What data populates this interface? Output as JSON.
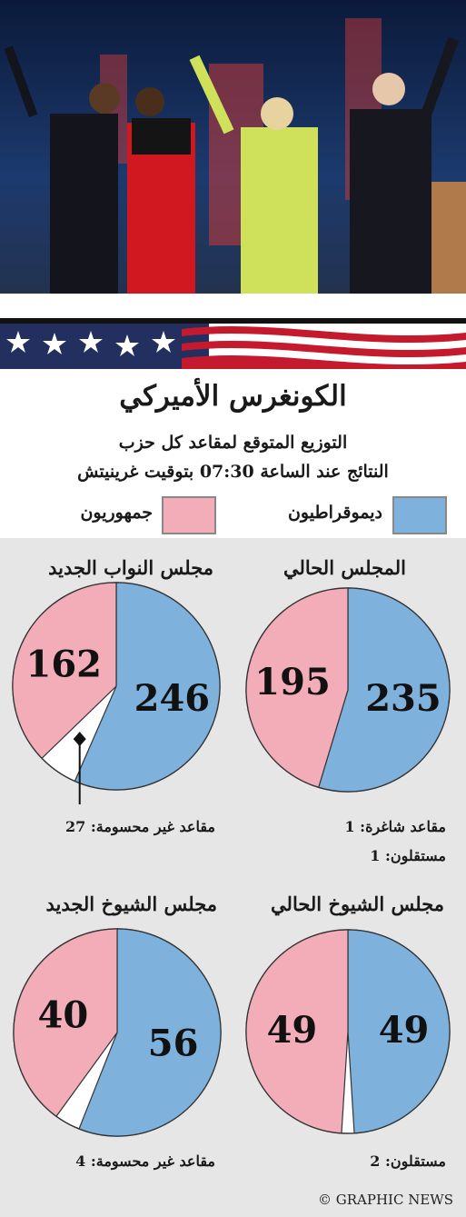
{
  "header": {
    "title": "الكونغرس الأميركي",
    "subtitle": "التوزيع المتوقع لمقاعد كل حزب",
    "results_time": "النتائج عند الساعة 07:30 بتوقيت غرينيتش"
  },
  "legend": {
    "democrats": "ديموقراطيون",
    "republicans": "جمهوريون"
  },
  "colors": {
    "democrats": "#7eb1dc",
    "republicans": "#f2adb9",
    "undecided": "#ffffff"
  },
  "chart_data": [
    {
      "type": "pie",
      "title": "المجلس الحالي",
      "series": [
        {
          "name": "ديموقراطيون",
          "value": 235
        },
        {
          "name": "جمهوريون",
          "value": 195
        }
      ],
      "notes": [
        "مقاعد شاغرة: 1",
        "مستقلون: 1"
      ]
    },
    {
      "type": "pie",
      "title": "مجلس النواب الجديد",
      "series": [
        {
          "name": "ديموقراطيون",
          "value": 246
        },
        {
          "name": "جمهوريون",
          "value": 162
        },
        {
          "name": "undecided",
          "value": 27
        }
      ],
      "notes": [
        "مقاعد غير محسومة: 27"
      ]
    },
    {
      "type": "pie",
      "title": "مجلس الشيوخ الحالي",
      "series": [
        {
          "name": "ديموقراطيون",
          "value": 49
        },
        {
          "name": "جمهوريون",
          "value": 49
        },
        {
          "name": "independent",
          "value": 2
        }
      ],
      "notes": [
        "مستقلون: 2"
      ]
    },
    {
      "type": "pie",
      "title": "مجلس الشيوخ الجديد",
      "series": [
        {
          "name": "ديموقراطيون",
          "value": 56
        },
        {
          "name": "جمهوريون",
          "value": 40
        },
        {
          "name": "undecided",
          "value": 4
        }
      ],
      "notes": [
        "مقاعد غير محسومة: 4"
      ]
    }
  ],
  "credit": "© GRAPHIC NEWS"
}
